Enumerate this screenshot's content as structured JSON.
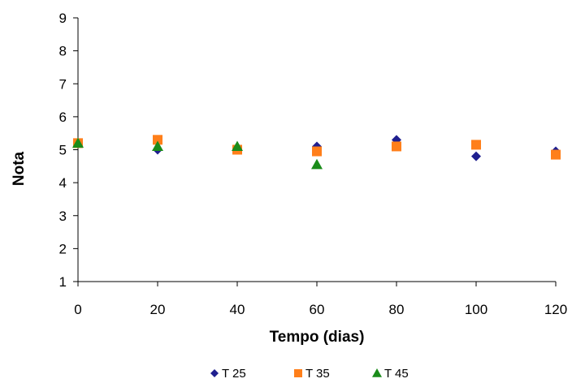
{
  "chart_data": {
    "type": "scatter",
    "title": "",
    "xlabel": "Tempo (dias)",
    "ylabel": "Nota",
    "xlim": [
      0,
      120
    ],
    "ylim": [
      1,
      9
    ],
    "xticks": [
      0,
      20,
      40,
      60,
      80,
      100,
      120
    ],
    "yticks": [
      1,
      2,
      3,
      4,
      5,
      6,
      7,
      8,
      9
    ],
    "grid": false,
    "legend_position": "bottom",
    "series": [
      {
        "name": "T 25",
        "marker": "diamond",
        "color": "#1f1f8f",
        "x": [
          0,
          20,
          40,
          60,
          80,
          100,
          120
        ],
        "y": [
          5.2,
          5.0,
          5.05,
          5.1,
          5.3,
          4.8,
          4.95
        ]
      },
      {
        "name": "T 35",
        "marker": "square",
        "color": "#ff7f1a",
        "x": [
          0,
          20,
          40,
          60,
          80,
          100,
          120
        ],
        "y": [
          5.2,
          5.3,
          5.0,
          4.95,
          5.1,
          5.15,
          4.85
        ]
      },
      {
        "name": "T 45",
        "marker": "triangle",
        "color": "#1a8c1a",
        "x": [
          0,
          20,
          40,
          60
        ],
        "y": [
          5.2,
          5.1,
          5.1,
          4.55
        ]
      }
    ]
  }
}
